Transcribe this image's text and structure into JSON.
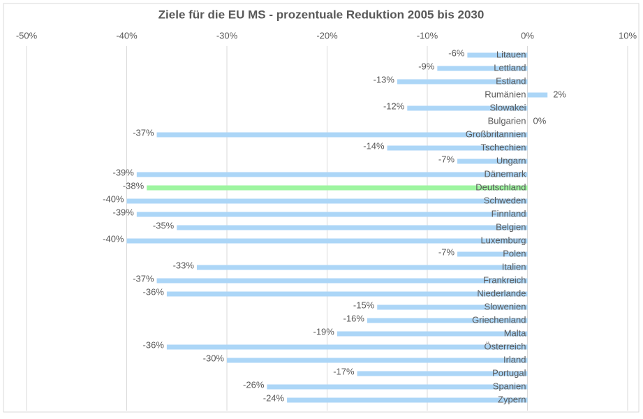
{
  "chart_data": {
    "type": "bar",
    "orientation": "horizontal",
    "title": "Ziele für die EU MS - prozentuale Reduktion 2005 bis 2030",
    "categories": [
      "Litauen",
      "Lettland",
      "Estland",
      "Rumänien",
      "Slowakei",
      "Bulgarien",
      "Großbritannien",
      "Tschechien",
      "Ungarn",
      "Dänemark",
      "Deutschland",
      "Schweden",
      "Finnland",
      "Belgien",
      "Luxemburg",
      "Polen",
      "Italien",
      "Frankreich",
      "Niederlande",
      "Slowenien",
      "Griechenland",
      "Malta",
      "Österreich",
      "Irland",
      "Portugal",
      "Spanien",
      "Zypern"
    ],
    "values": [
      -6,
      -9,
      -13,
      2,
      -12,
      0,
      -37,
      -14,
      -7,
      -39,
      -38,
      -40,
      -39,
      -35,
      -40,
      -7,
      -33,
      -37,
      -36,
      -15,
      -16,
      -19,
      -36,
      -30,
      -17,
      -26,
      -24
    ],
    "value_labels": [
      "-6%",
      "-9%",
      "-13%",
      "2%",
      "-12%",
      "0%",
      "-37%",
      "-14%",
      "-7%",
      "-39%",
      "-38%",
      "-40%",
      "-39%",
      "-35%",
      "-40%",
      "-7%",
      "-33%",
      "-37%",
      "-36%",
      "-15%",
      "-16%",
      "-19%",
      "-36%",
      "-30%",
      "-17%",
      "-26%",
      "-24%"
    ],
    "colors": [
      "#acd6f7",
      "#acd6f7",
      "#acd6f7",
      "#acd6f7",
      "#acd6f7",
      "#acd6f7",
      "#acd6f7",
      "#acd6f7",
      "#acd6f7",
      "#acd6f7",
      "#9ef5a0",
      "#acd6f7",
      "#acd6f7",
      "#acd6f7",
      "#acd6f7",
      "#acd6f7",
      "#acd6f7",
      "#acd6f7",
      "#acd6f7",
      "#acd6f7",
      "#acd6f7",
      "#acd6f7",
      "#acd6f7",
      "#acd6f7",
      "#acd6f7",
      "#acd6f7",
      "#acd6f7"
    ],
    "xlim": [
      -50,
      10
    ],
    "xticks": [
      {
        "value": -50,
        "label": "-50%"
      },
      {
        "value": -40,
        "label": "-40%"
      },
      {
        "value": -30,
        "label": "-30%"
      },
      {
        "value": -20,
        "label": "-20%"
      },
      {
        "value": -10,
        "label": "-10%"
      },
      {
        "value": 0,
        "label": "0%"
      },
      {
        "value": 10,
        "label": "10%"
      }
    ],
    "grid": true
  }
}
